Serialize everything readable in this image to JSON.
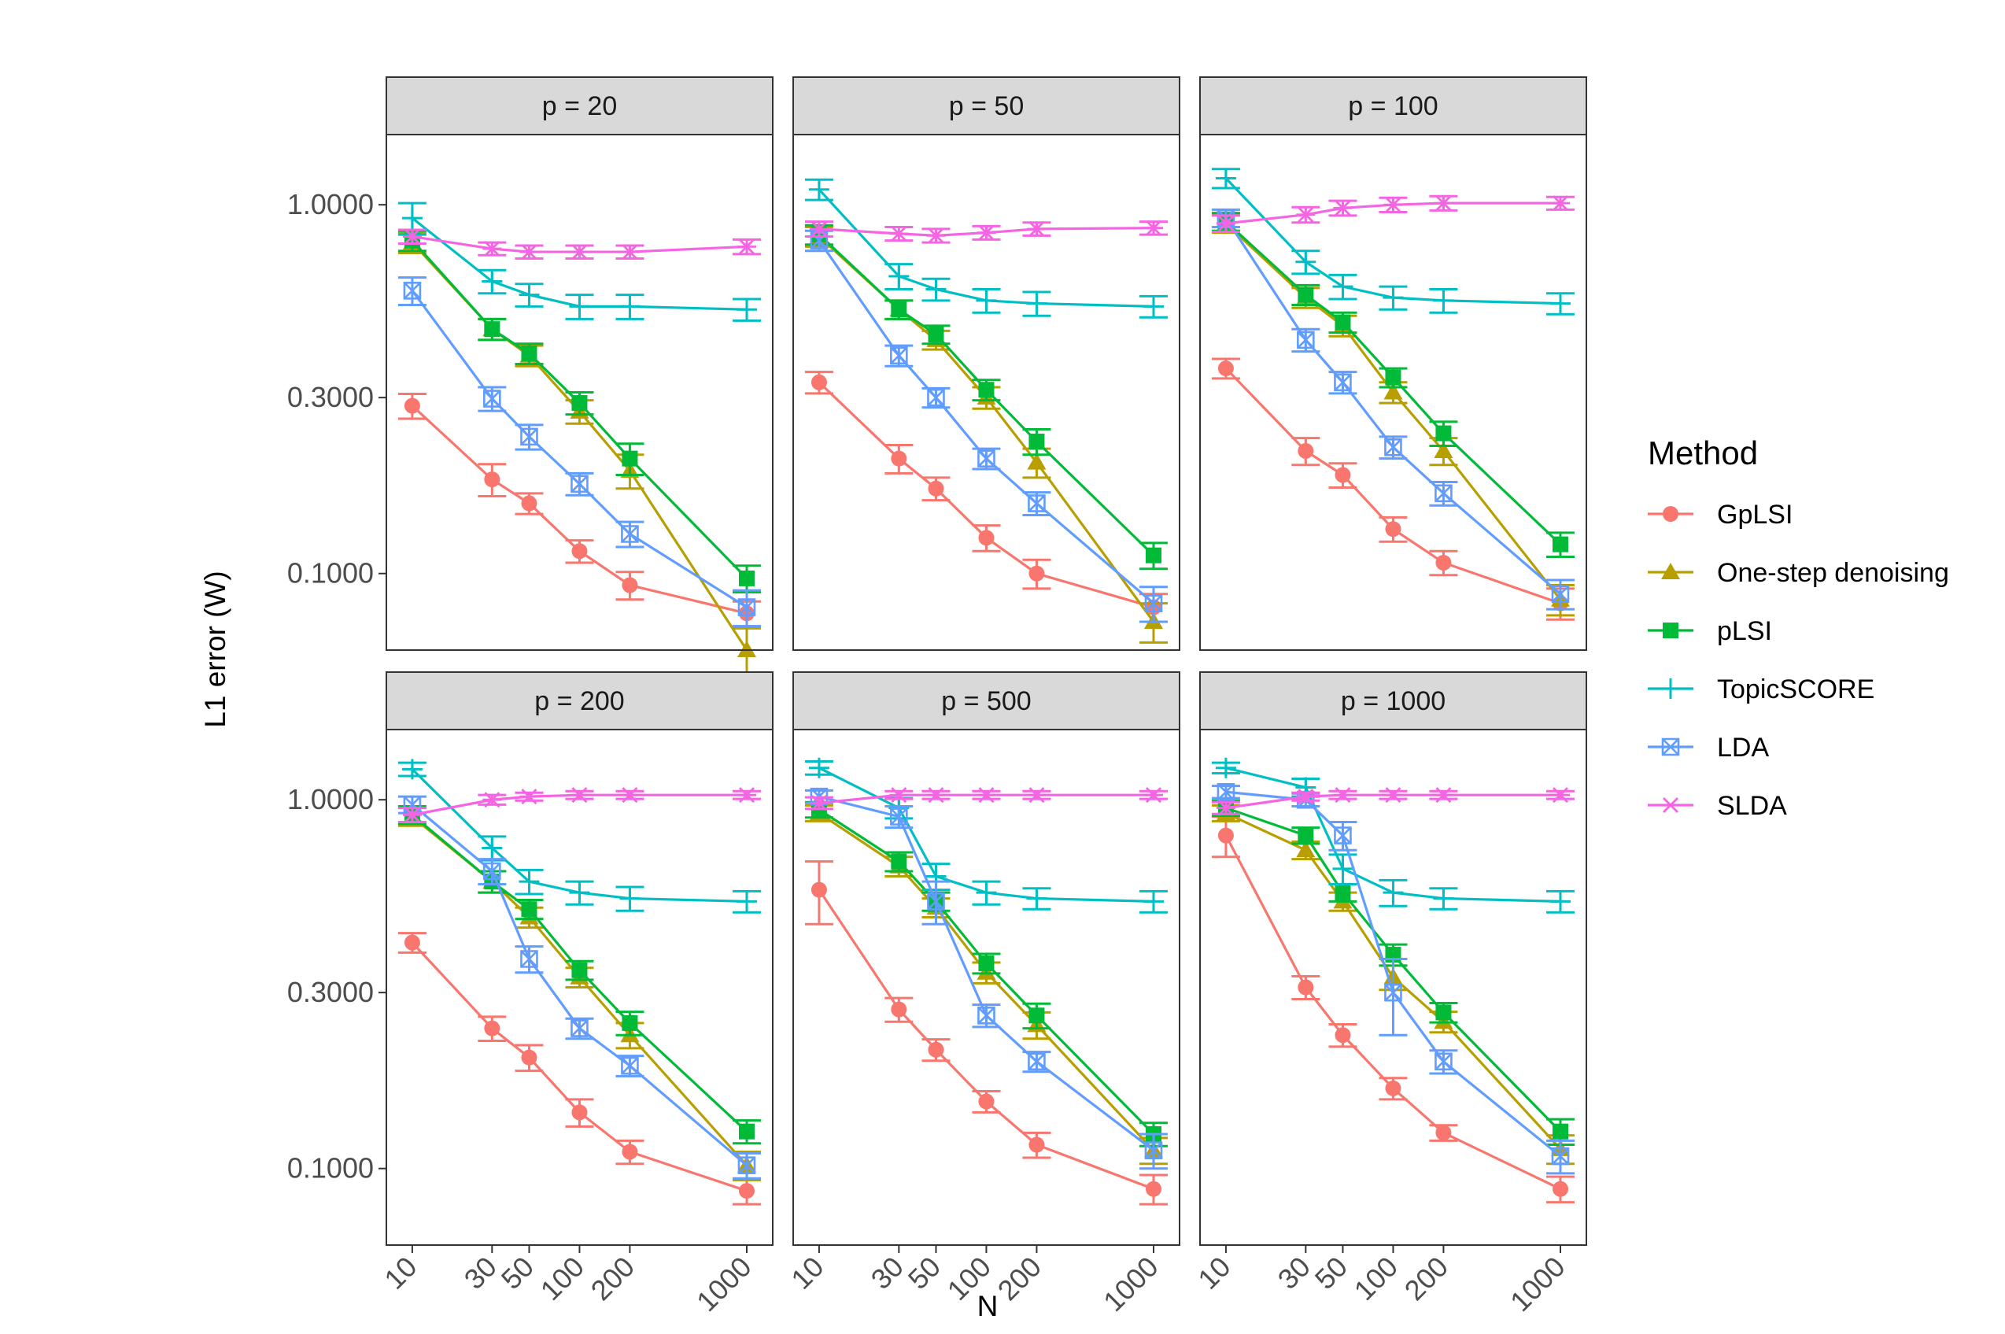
{
  "chart_data": {
    "type": "line",
    "scale": "log10",
    "ylabel": "L1 error (W)",
    "xlabel": "N",
    "x": [
      10,
      30,
      50,
      100,
      200,
      1000
    ],
    "x_tick_labels": [
      "10",
      "30",
      "50",
      "100",
      "200",
      "1000"
    ],
    "y_ticks": [
      0.1,
      0.3,
      1.0
    ],
    "y_tick_labels": [
      "0.1000",
      "0.3000",
      "1.0000"
    ],
    "ylim": [
      0.062,
      1.55
    ],
    "legend": {
      "title": "Method",
      "entries": [
        "GpLSI",
        "One-step denoising",
        "pLSI",
        "TopicSCORE",
        "LDA",
        "SLDA"
      ]
    },
    "series_colors": {
      "GpLSI": "#F8766D",
      "One-step denoising": "#B79F00",
      "pLSI": "#00BA38",
      "TopicSCORE": "#00BFC4",
      "LDA": "#619CFF",
      "SLDA": "#F564E3"
    },
    "panels": [
      {
        "label": "p = 20",
        "series": [
          {
            "name": "GpLSI",
            "values": [
              0.285,
              0.18,
              0.155,
              0.115,
              0.093,
              0.078
            ],
            "err": [
              0.022,
              0.018,
              0.01,
              0.008,
              0.008,
              0.006
            ]
          },
          {
            "name": "One-step denoising",
            "values": [
              0.79,
              0.46,
              0.39,
              0.275,
              0.19,
              0.062
            ],
            "err": [
              0.05,
              0.03,
              0.025,
              0.02,
              0.02,
              0.009
            ]
          },
          {
            "name": "pLSI",
            "values": [
              0.8,
              0.46,
              0.395,
              0.29,
              0.205,
              0.097
            ],
            "err": [
              0.05,
              0.03,
              0.025,
              0.02,
              0.02,
              0.008
            ]
          },
          {
            "name": "TopicSCORE",
            "values": [
              0.92,
              0.62,
              0.57,
              0.53,
              0.53,
              0.52
            ],
            "err": [
              0.09,
              0.045,
              0.04,
              0.04,
              0.04,
              0.035
            ]
          },
          {
            "name": "LDA",
            "values": [
              0.585,
              0.298,
              0.235,
              0.175,
              0.128,
              0.081
            ],
            "err": [
              0.05,
              0.022,
              0.018,
              0.012,
              0.01,
              0.009
            ]
          },
          {
            "name": "SLDA",
            "values": [
              0.82,
              0.76,
              0.745,
              0.745,
              0.745,
              0.77
            ],
            "err": [
              0.035,
              0.03,
              0.03,
              0.03,
              0.03,
              0.035
            ]
          }
        ]
      },
      {
        "label": "p = 50",
        "series": [
          {
            "name": "GpLSI",
            "values": [
              0.33,
              0.205,
              0.17,
              0.125,
              0.1,
              0.081
            ],
            "err": [
              0.022,
              0.018,
              0.012,
              0.01,
              0.009,
              0.007
            ]
          },
          {
            "name": "One-step denoising",
            "values": [
              0.82,
              0.52,
              0.43,
              0.3,
              0.2,
              0.074
            ],
            "err": [
              0.05,
              0.03,
              0.025,
              0.02,
              0.018,
              0.009
            ]
          },
          {
            "name": "pLSI",
            "values": [
              0.83,
              0.52,
              0.445,
              0.315,
              0.228,
              0.112
            ],
            "err": [
              0.05,
              0.03,
              0.025,
              0.02,
              0.018,
              0.009
            ]
          },
          {
            "name": "TopicSCORE",
            "values": [
              1.1,
              0.64,
              0.59,
              0.55,
              0.54,
              0.53
            ],
            "err": [
              0.07,
              0.05,
              0.04,
              0.04,
              0.04,
              0.035
            ]
          },
          {
            "name": "LDA",
            "values": [
              0.8,
              0.39,
              0.3,
              0.205,
              0.155,
              0.083
            ],
            "err": [
              0.05,
              0.025,
              0.018,
              0.013,
              0.011,
              0.009
            ]
          },
          {
            "name": "SLDA",
            "values": [
              0.86,
              0.835,
              0.825,
              0.84,
              0.86,
              0.865
            ],
            "err": [
              0.04,
              0.035,
              0.035,
              0.035,
              0.035,
              0.035
            ]
          }
        ]
      },
      {
        "label": "p = 100",
        "series": [
          {
            "name": "GpLSI",
            "values": [
              0.36,
              0.215,
              0.185,
              0.132,
              0.107,
              0.083
            ],
            "err": [
              0.022,
              0.018,
              0.014,
              0.01,
              0.008,
              0.008
            ]
          },
          {
            "name": "One-step denoising",
            "values": [
              0.89,
              0.56,
              0.47,
              0.31,
              0.215,
              0.085
            ],
            "err": [
              0.05,
              0.035,
              0.03,
              0.02,
              0.018,
              0.008
            ]
          },
          {
            "name": "pLSI",
            "values": [
              0.9,
              0.57,
              0.48,
              0.34,
              0.24,
              0.12
            ],
            "err": [
              0.05,
              0.035,
              0.03,
              0.02,
              0.018,
              0.009
            ]
          },
          {
            "name": "TopicSCORE",
            "values": [
              1.18,
              0.7,
              0.6,
              0.56,
              0.55,
              0.54
            ],
            "err": [
              0.07,
              0.05,
              0.045,
              0.04,
              0.04,
              0.035
            ]
          },
          {
            "name": "LDA",
            "values": [
              0.92,
              0.43,
              0.33,
              0.22,
              0.165,
              0.088
            ],
            "err": [
              0.05,
              0.03,
              0.022,
              0.015,
              0.012,
              0.008
            ]
          },
          {
            "name": "SLDA",
            "values": [
              0.89,
              0.94,
              0.98,
              1.0,
              1.01,
              1.01
            ],
            "err": [
              0.045,
              0.045,
              0.045,
              0.045,
              0.045,
              0.04
            ]
          }
        ]
      },
      {
        "label": "p = 200",
        "series": [
          {
            "name": "GpLSI",
            "values": [
              0.41,
              0.24,
              0.2,
              0.142,
              0.111,
              0.087
            ],
            "err": [
              0.025,
              0.018,
              0.016,
              0.012,
              0.008,
              0.007
            ]
          },
          {
            "name": "One-step denoising",
            "values": [
              0.9,
              0.6,
              0.48,
              0.33,
              0.23,
              0.102
            ],
            "err": [
              0.05,
              0.04,
              0.03,
              0.02,
              0.018,
              0.009
            ]
          },
          {
            "name": "pLSI",
            "values": [
              0.91,
              0.6,
              0.505,
              0.345,
              0.248,
              0.126
            ],
            "err": [
              0.05,
              0.04,
              0.03,
              0.02,
              0.018,
              0.009
            ]
          },
          {
            "name": "TopicSCORE",
            "values": [
              1.21,
              0.74,
              0.6,
              0.56,
              0.54,
              0.53
            ],
            "err": [
              0.05,
              0.055,
              0.045,
              0.04,
              0.04,
              0.035
            ]
          },
          {
            "name": "LDA",
            "values": [
              0.97,
              0.64,
              0.37,
              0.24,
              0.19,
              0.102
            ],
            "err": [
              0.05,
              0.05,
              0.03,
              0.015,
              0.012,
              0.008
            ]
          },
          {
            "name": "SLDA",
            "values": [
              0.91,
              1.0,
              1.02,
              1.03,
              1.03,
              1.03
            ],
            "err": [
              0.04,
              0.03,
              0.025,
              0.025,
              0.025,
              0.025
            ]
          }
        ]
      },
      {
        "label": "p = 500",
        "series": [
          {
            "name": "GpLSI",
            "values": [
              0.57,
              0.27,
              0.21,
              0.152,
              0.116,
              0.088
            ],
            "err": [
              0.11,
              0.02,
              0.014,
              0.01,
              0.009,
              0.008
            ]
          },
          {
            "name": "One-step denoising",
            "values": [
              0.92,
              0.66,
              0.51,
              0.34,
              0.245,
              0.112
            ],
            "err": [
              0.045,
              0.04,
              0.03,
              0.022,
              0.02,
              0.009
            ]
          },
          {
            "name": "pLSI",
            "values": [
              0.94,
              0.68,
              0.53,
              0.36,
              0.26,
              0.124
            ],
            "err": [
              0.045,
              0.04,
              0.03,
              0.022,
              0.02,
              0.009
            ]
          },
          {
            "name": "TopicSCORE",
            "values": [
              1.22,
              0.95,
              0.62,
              0.56,
              0.54,
              0.53
            ],
            "err": [
              0.05,
              0.06,
              0.05,
              0.04,
              0.035,
              0.035
            ]
          },
          {
            "name": "LDA",
            "values": [
              1.02,
              0.9,
              0.53,
              0.26,
              0.195,
              0.112
            ],
            "err": [
              0.04,
              0.06,
              0.07,
              0.018,
              0.012,
              0.012
            ]
          },
          {
            "name": "SLDA",
            "values": [
              0.98,
              1.03,
              1.03,
              1.03,
              1.03,
              1.03
            ],
            "err": [
              0.035,
              0.025,
              0.025,
              0.025,
              0.025,
              0.025
            ]
          }
        ]
      },
      {
        "label": "p = 1000",
        "series": [
          {
            "name": "GpLSI",
            "values": [
              0.8,
              0.31,
              0.23,
              0.165,
              0.125,
              0.088
            ],
            "err": [
              0.1,
              0.022,
              0.016,
              0.011,
              0.006,
              0.007
            ]
          },
          {
            "name": "One-step denoising",
            "values": [
              0.92,
              0.73,
              0.53,
              0.33,
              0.25,
              0.113
            ],
            "err": [
              0.045,
              0.04,
              0.03,
              0.025,
              0.016,
              0.01
            ]
          },
          {
            "name": "pLSI",
            "values": [
              0.95,
              0.8,
              0.56,
              0.38,
              0.265,
              0.126
            ],
            "err": [
              0.045,
              0.04,
              0.03,
              0.025,
              0.016,
              0.01
            ]
          },
          {
            "name": "TopicSCORE",
            "values": [
              1.22,
              1.08,
              0.65,
              0.56,
              0.54,
              0.53
            ],
            "err": [
              0.04,
              0.06,
              0.06,
              0.045,
              0.035,
              0.035
            ]
          },
          {
            "name": "LDA",
            "values": [
              1.05,
              1.0,
              0.8,
              0.3,
              0.195,
              0.108
            ],
            "err": [
              0.04,
              0.04,
              0.07,
              0.07,
              0.014,
              0.011
            ]
          },
          {
            "name": "SLDA",
            "values": [
              0.95,
              1.02,
              1.03,
              1.03,
              1.03,
              1.03
            ],
            "err": [
              0.035,
              0.025,
              0.025,
              0.025,
              0.025,
              0.025
            ]
          }
        ]
      }
    ]
  }
}
